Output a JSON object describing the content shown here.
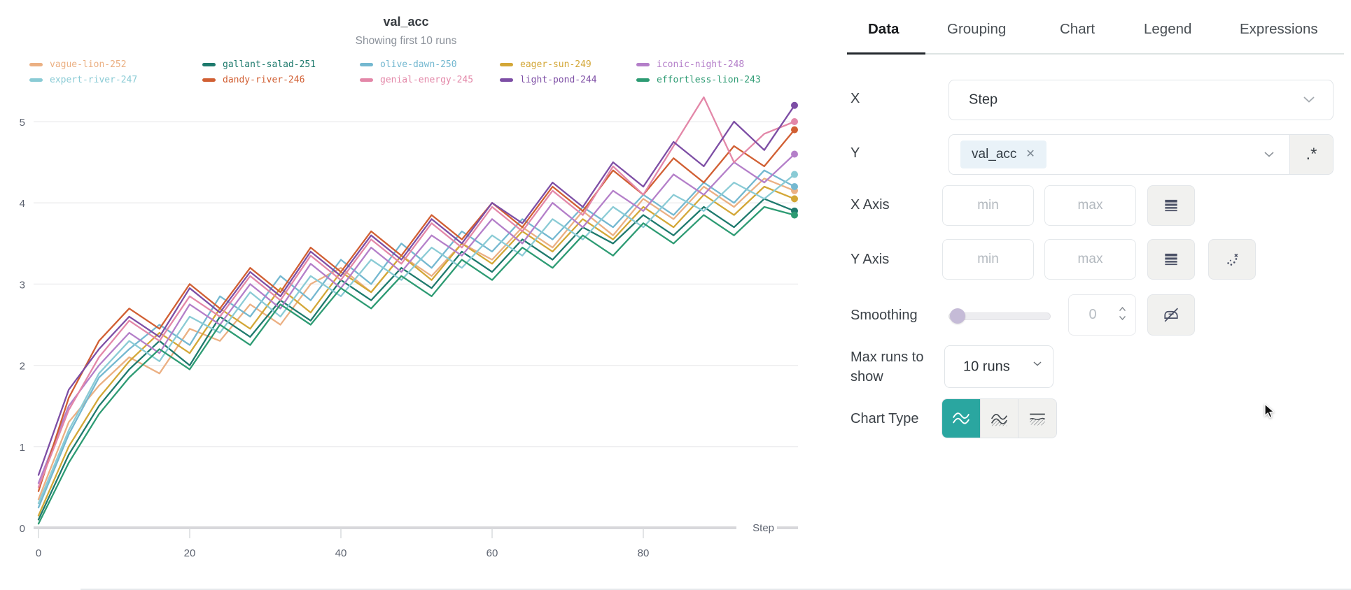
{
  "chart_data": {
    "type": "line",
    "title": "val_acc",
    "subtitle": "Showing first 10 runs",
    "xlabel": "Step",
    "ylabel": "",
    "xlim": [
      0,
      100
    ],
    "ylim": [
      0,
      5.4
    ],
    "grid": true,
    "legend_position": "top",
    "x_ticks": [
      0,
      20,
      40,
      60,
      80
    ],
    "y_ticks": [
      0,
      1,
      2,
      3,
      4,
      5
    ],
    "x": [
      0,
      4,
      8,
      12,
      16,
      20,
      24,
      28,
      32,
      36,
      40,
      44,
      48,
      52,
      56,
      60,
      64,
      68,
      72,
      76,
      80,
      84,
      88,
      92,
      96,
      100
    ],
    "series": [
      {
        "name": "vague-lion-252",
        "color": "#ebb083",
        "values": [
          0.35,
          1.3,
          1.75,
          2.1,
          1.9,
          2.45,
          2.3,
          2.75,
          2.5,
          3.0,
          3.2,
          2.9,
          3.35,
          3.1,
          3.5,
          3.3,
          3.7,
          3.45,
          3.9,
          3.6,
          4.05,
          3.8,
          4.2,
          3.95,
          4.3,
          4.15
        ]
      },
      {
        "name": "gallant-salad-251",
        "color": "#1e7a6d",
        "values": [
          0.1,
          0.9,
          1.5,
          1.95,
          2.3,
          2.0,
          2.6,
          2.35,
          2.8,
          2.55,
          3.05,
          2.8,
          3.2,
          2.95,
          3.4,
          3.15,
          3.55,
          3.3,
          3.7,
          3.5,
          3.85,
          3.6,
          3.95,
          3.7,
          4.05,
          3.9
        ]
      },
      {
        "name": "olive-dawn-250",
        "color": "#74b8d0",
        "values": [
          0.25,
          1.15,
          1.85,
          2.2,
          2.5,
          2.25,
          2.85,
          2.6,
          3.1,
          2.8,
          3.3,
          3.0,
          3.5,
          3.2,
          3.65,
          3.4,
          3.8,
          3.55,
          3.95,
          3.7,
          4.1,
          3.85,
          4.25,
          4.0,
          4.4,
          4.2
        ]
      },
      {
        "name": "eager-sun-249",
        "color": "#d3a737",
        "values": [
          0.15,
          1.0,
          1.6,
          2.05,
          2.4,
          2.15,
          2.7,
          2.45,
          2.95,
          2.65,
          3.15,
          2.9,
          3.35,
          3.05,
          3.5,
          3.25,
          3.65,
          3.4,
          3.8,
          3.55,
          3.95,
          3.7,
          4.1,
          3.85,
          4.2,
          4.05
        ]
      },
      {
        "name": "iconic-night-248",
        "color": "#b47fc9",
        "values": [
          0.55,
          1.5,
          2.0,
          2.4,
          2.15,
          2.75,
          2.5,
          3.0,
          2.7,
          3.25,
          2.95,
          3.45,
          3.15,
          3.6,
          3.35,
          3.8,
          3.5,
          4.0,
          3.7,
          4.15,
          3.9,
          4.35,
          4.1,
          4.5,
          4.25,
          4.6
        ]
      },
      {
        "name": "expert-river-247",
        "color": "#8acbd5",
        "values": [
          0.3,
          1.2,
          1.9,
          2.3,
          2.05,
          2.6,
          2.4,
          2.9,
          2.6,
          3.1,
          2.85,
          3.3,
          3.05,
          3.45,
          3.2,
          3.6,
          3.35,
          3.8,
          3.55,
          3.95,
          3.7,
          4.1,
          3.9,
          4.25,
          4.05,
          4.35
        ]
      },
      {
        "name": "dandy-river-246",
        "color": "#d15f33",
        "values": [
          0.45,
          1.6,
          2.3,
          2.7,
          2.45,
          3.0,
          2.7,
          3.2,
          2.9,
          3.45,
          3.15,
          3.65,
          3.35,
          3.85,
          3.55,
          4.0,
          3.7,
          4.2,
          3.9,
          4.4,
          4.1,
          4.55,
          4.25,
          4.7,
          4.45,
          4.9
        ]
      },
      {
        "name": "genial-energy-245",
        "color": "#e387a8",
        "values": [
          0.5,
          1.45,
          2.1,
          2.55,
          2.3,
          2.85,
          2.6,
          3.1,
          2.8,
          3.35,
          3.05,
          3.55,
          3.25,
          3.75,
          3.45,
          3.95,
          3.65,
          4.15,
          3.85,
          4.45,
          4.1,
          4.7,
          5.3,
          4.5,
          4.85,
          5.0
        ]
      },
      {
        "name": "light-pond-244",
        "color": "#7d4ea5",
        "values": [
          0.65,
          1.7,
          2.2,
          2.6,
          2.35,
          2.95,
          2.65,
          3.15,
          2.85,
          3.4,
          3.1,
          3.6,
          3.3,
          3.8,
          3.5,
          4.0,
          3.75,
          4.25,
          3.95,
          4.5,
          4.2,
          4.75,
          4.45,
          5.0,
          4.65,
          5.2
        ]
      },
      {
        "name": "effortless-lion-243",
        "color": "#2d9b73",
        "values": [
          0.05,
          0.8,
          1.4,
          1.85,
          2.2,
          1.95,
          2.5,
          2.25,
          2.75,
          2.5,
          2.95,
          2.7,
          3.1,
          2.85,
          3.3,
          3.05,
          3.45,
          3.2,
          3.6,
          3.35,
          3.75,
          3.5,
          3.85,
          3.6,
          3.95,
          3.85
        ]
      }
    ]
  },
  "panel": {
    "tabs": [
      {
        "label": "Data"
      },
      {
        "label": "Grouping"
      },
      {
        "label": "Chart"
      },
      {
        "label": "Legend"
      },
      {
        "label": "Expressions"
      }
    ],
    "x_row": {
      "label": "X",
      "value": "Step"
    },
    "y_row": {
      "label": "Y",
      "tag": "val_acc",
      "tag_remove": "✕",
      "regex_label": ".*"
    },
    "x_axis_row": {
      "label": "X Axis",
      "min_placeholder": "min",
      "max_placeholder": "max"
    },
    "y_axis_row": {
      "label": "Y Axis",
      "min_placeholder": "min",
      "max_placeholder": "max"
    },
    "smoothing_row": {
      "label": "Smoothing",
      "value": "0"
    },
    "max_runs_row": {
      "label_line1": "Max runs to",
      "label_line2": "show",
      "value": "10 runs"
    },
    "chart_type_row": {
      "label": "Chart Type"
    }
  },
  "colors": {
    "accent_teal": "#2aa6a0",
    "tag_bg": "#e9f2f8",
    "slider_knob": "#c5bbd7",
    "active_tab_underline": "#23282d",
    "gridline": "#ececee",
    "axis_line": "#d8d8db"
  },
  "icons": {
    "select_chevron": "chevron-down",
    "tag_remove": "x-close",
    "regex_toggle": ".*",
    "axis_scale": "log-bars",
    "ignore_outliers": "scatter-with-x",
    "smoothing_mode": "iron-slash",
    "chart_types": [
      "line",
      "area",
      "min-max"
    ],
    "spinner": "up-down-chevrons",
    "pointer": "arrow-cursor"
  }
}
